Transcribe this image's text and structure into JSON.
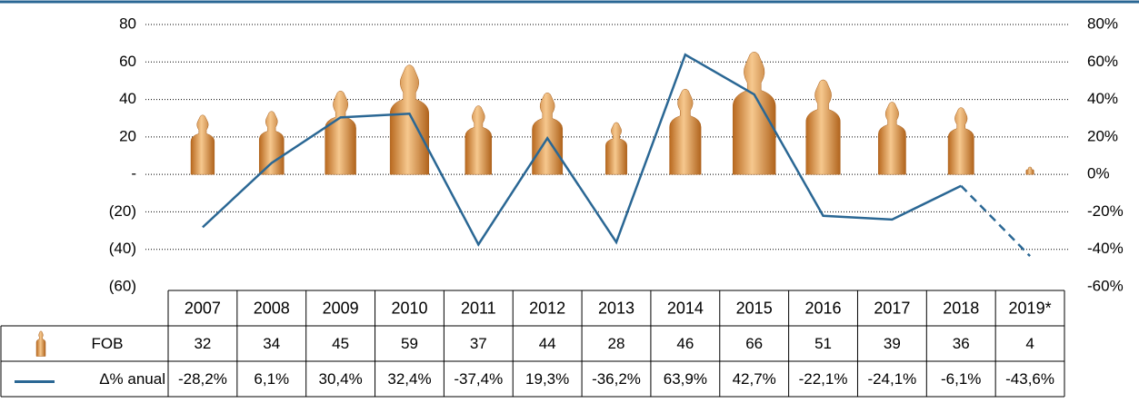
{
  "chart_data": {
    "type": "bar-line",
    "categories": [
      "2007",
      "2008",
      "2009",
      "2010",
      "2011",
      "2012",
      "2013",
      "2014",
      "2015",
      "2016",
      "2017",
      "2018",
      "2019*"
    ],
    "series": [
      {
        "name": "FOB",
        "type": "bar",
        "color": "#e39a4c",
        "values": [
          32,
          34,
          45,
          59,
          37,
          44,
          28,
          46,
          66,
          51,
          39,
          36,
          4
        ]
      },
      {
        "name": "Δ% anual",
        "type": "line",
        "axis": "y2",
        "color": "#2a6794",
        "dashed_last_segment": true,
        "values": [
          -28.2,
          6.1,
          30.4,
          32.4,
          -37.4,
          19.3,
          -36.2,
          63.9,
          42.7,
          -22.1,
          -24.1,
          -6.1,
          -43.6
        ],
        "value_labels": [
          "-28,2%",
          "6,1%",
          "30,4%",
          "32,4%",
          "-37,4%",
          "19,3%",
          "-36,2%",
          "63,9%",
          "42,7%",
          "-22,1%",
          "-24,1%",
          "-6,1%",
          "-43,6%"
        ]
      }
    ],
    "ylim": [
      -60,
      80
    ],
    "yticks": [
      80,
      60,
      40,
      20,
      {
        "value": 0,
        "label": "-"
      },
      {
        "value": -20,
        "label": "(20)"
      },
      {
        "value": -40,
        "label": "(40)"
      },
      {
        "value": -60,
        "label": "(60)"
      }
    ],
    "y2lim": [
      -60,
      80
    ],
    "y2ticks": [
      {
        "value": 80,
        "label": "80%"
      },
      {
        "value": 60,
        "label": "60%"
      },
      {
        "value": 40,
        "label": "40%"
      },
      {
        "value": 20,
        "label": "20%"
      },
      {
        "value": 0,
        "label": "0%"
      },
      {
        "value": -20,
        "label": "-20%"
      },
      {
        "value": -40,
        "label": "-40%"
      },
      {
        "value": -60,
        "label": "-60%"
      }
    ],
    "grid": true
  }
}
